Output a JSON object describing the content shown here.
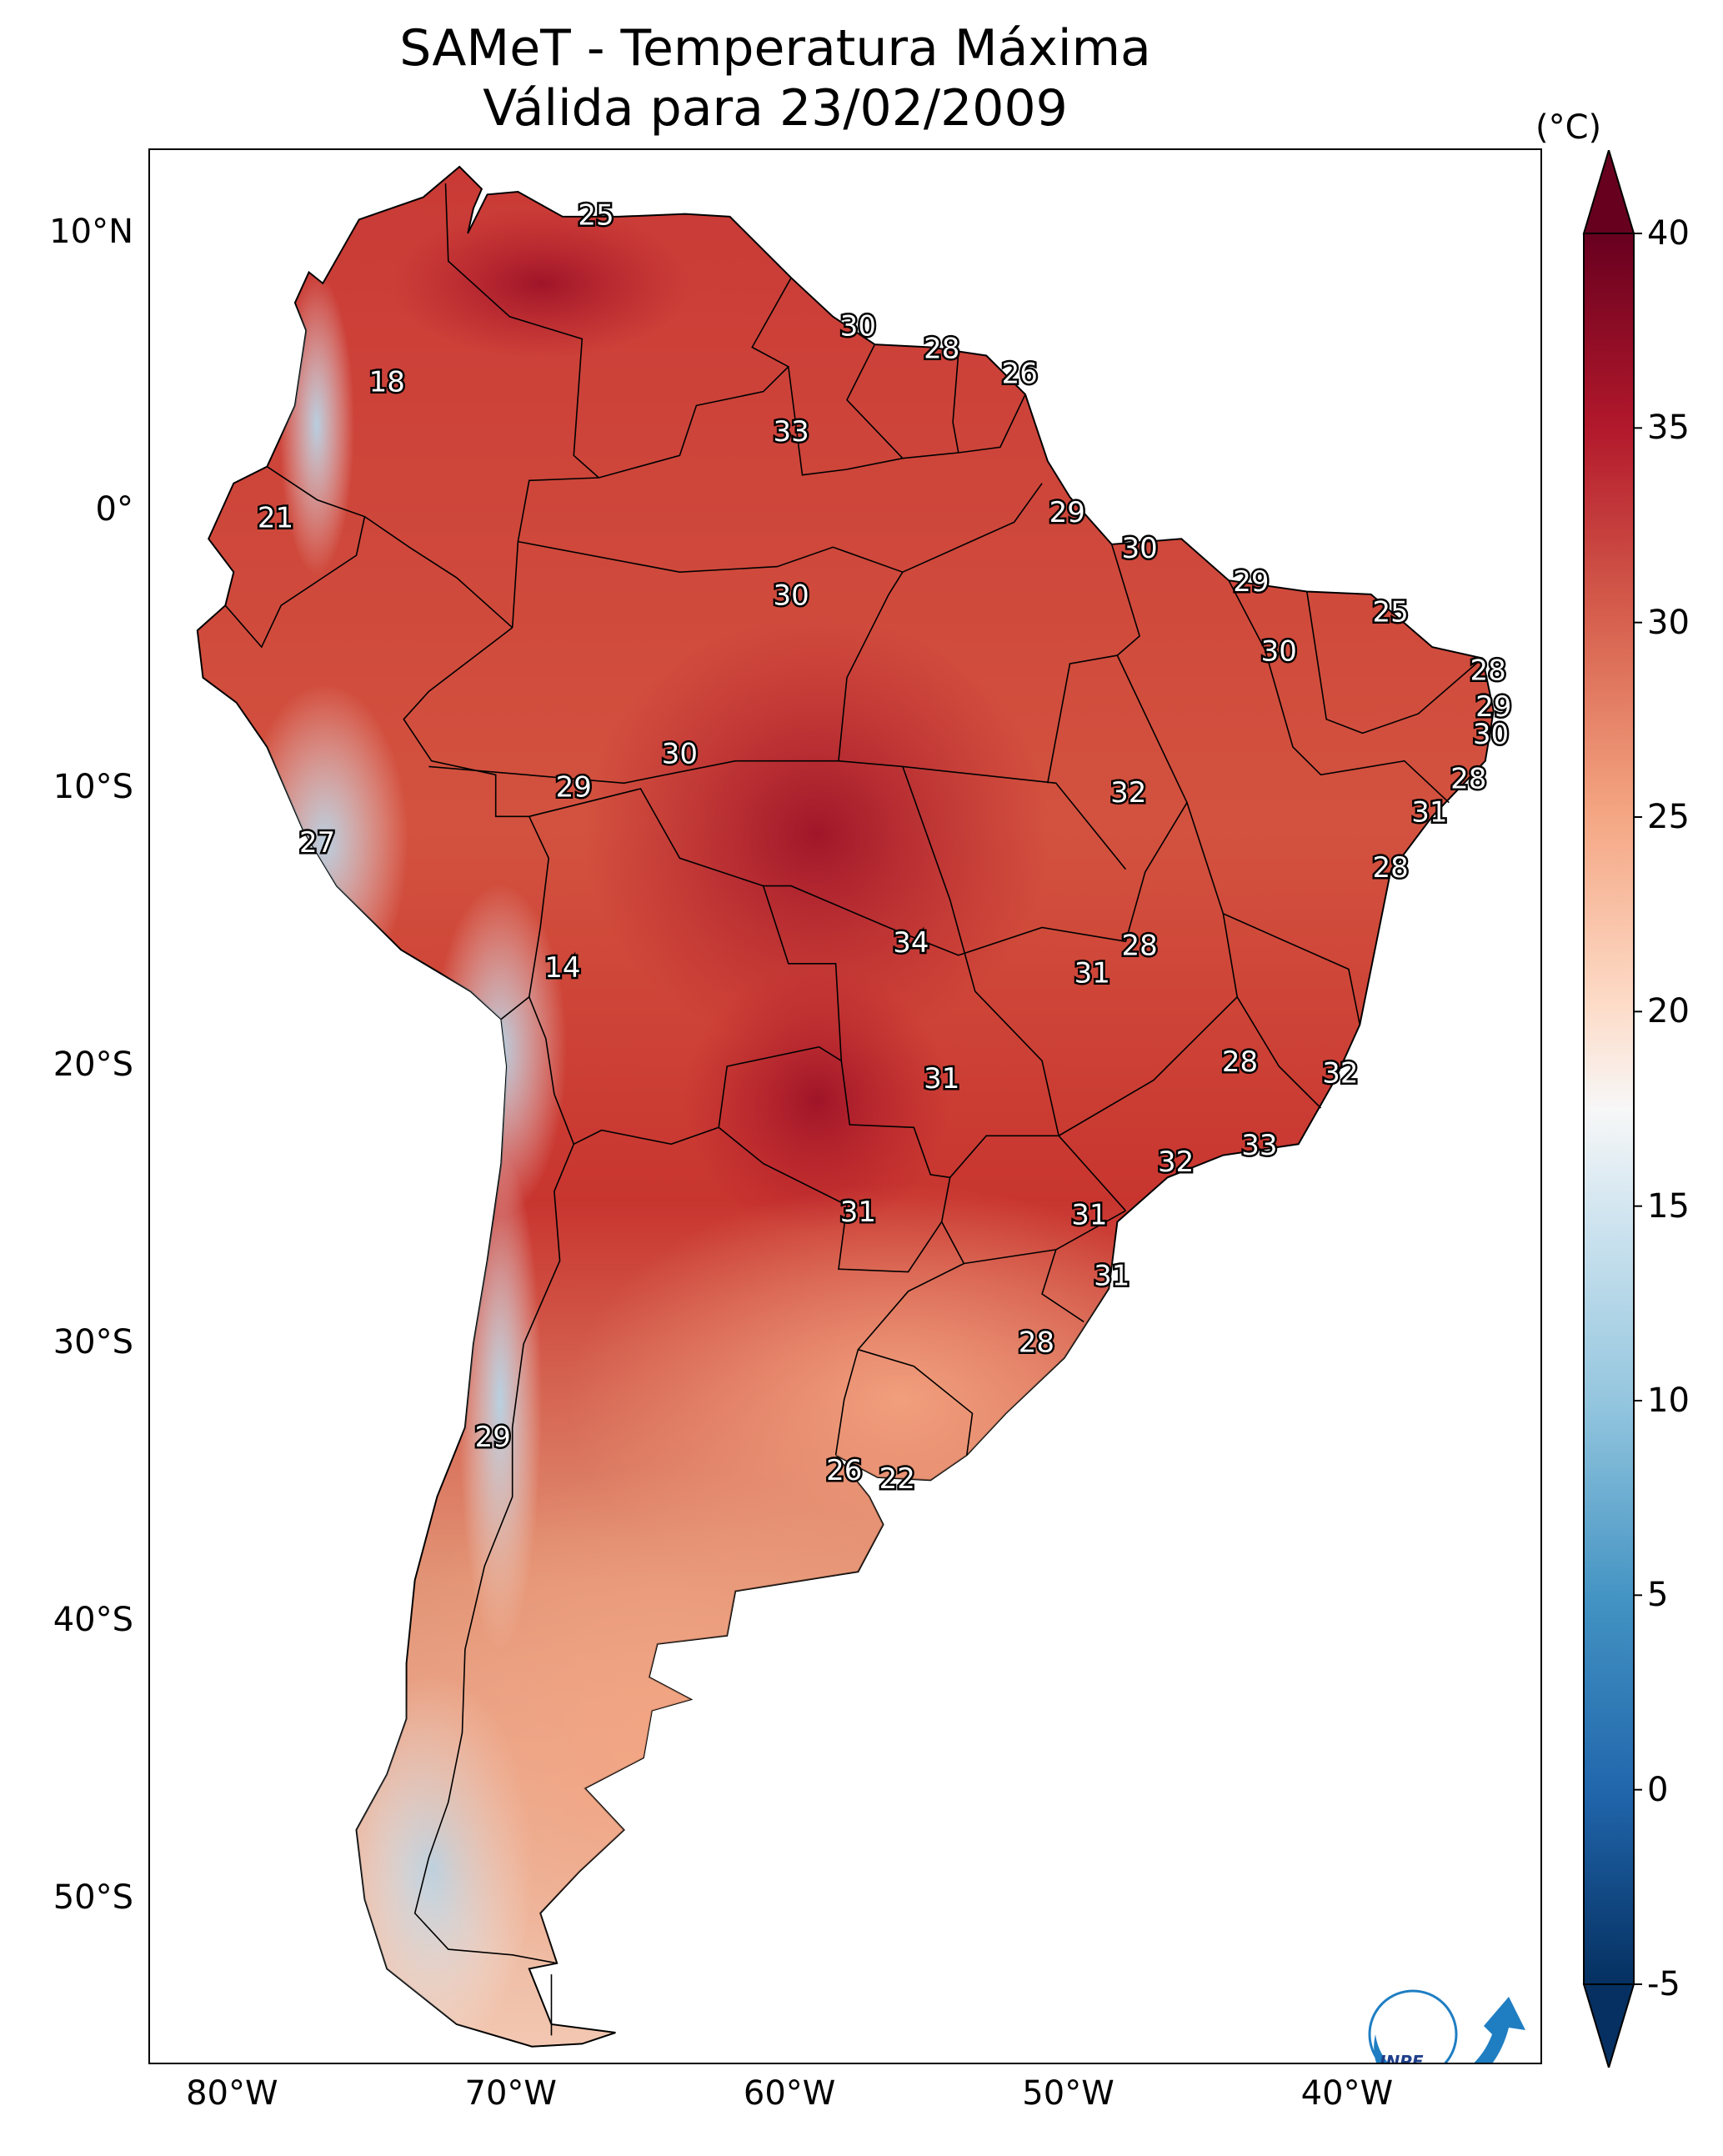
{
  "title": {
    "line1": "SAMeT - Temperatura Máxima",
    "line2": "Válida para 23/02/2009"
  },
  "lat_ticks": [
    {
      "label": "10°N",
      "lat": 10
    },
    {
      "label": "0°",
      "lat": 0
    },
    {
      "label": "10°S",
      "lat": -10
    },
    {
      "label": "20°S",
      "lat": -20
    },
    {
      "label": "30°S",
      "lat": -30
    },
    {
      "label": "40°S",
      "lat": -40
    },
    {
      "label": "50°S",
      "lat": -50
    }
  ],
  "lon_ticks": [
    {
      "label": "80°W",
      "lon": -80
    },
    {
      "label": "70°W",
      "lon": -70
    },
    {
      "label": "60°W",
      "lon": -60
    },
    {
      "label": "50°W",
      "lon": -50
    },
    {
      "label": "40°W",
      "lon": -40
    }
  ],
  "colorbar": {
    "unit": "(°C)",
    "min": -5,
    "max": 40,
    "extend": "both",
    "colormap": "RdBu_r",
    "ticks": [
      "40",
      "35",
      "30",
      "25",
      "20",
      "15",
      "10",
      "5",
      "0",
      "-5"
    ]
  },
  "map_extent": {
    "lon_min": -83,
    "lon_max": -33,
    "lat_min": -56,
    "lat_max": 13
  },
  "station_labels": [
    {
      "text": "25",
      "lon": -67.0,
      "lat": 10.6
    },
    {
      "text": "18",
      "lon": -74.5,
      "lat": 4.6
    },
    {
      "text": "30",
      "lon": -57.6,
      "lat": 6.6
    },
    {
      "text": "28",
      "lon": -54.6,
      "lat": 5.8
    },
    {
      "text": "26",
      "lon": -51.8,
      "lat": 4.9
    },
    {
      "text": "33",
      "lon": -60.0,
      "lat": 2.8
    },
    {
      "text": "21",
      "lon": -78.5,
      "lat": -0.3
    },
    {
      "text": "29",
      "lon": -50.1,
      "lat": -0.1
    },
    {
      "text": "30",
      "lon": -47.5,
      "lat": -1.4
    },
    {
      "text": "29",
      "lon": -43.5,
      "lat": -2.6
    },
    {
      "text": "25",
      "lon": -38.5,
      "lat": -3.7
    },
    {
      "text": "30",
      "lon": -60.0,
      "lat": -3.1
    },
    {
      "text": "30",
      "lon": -42.5,
      "lat": -5.1
    },
    {
      "text": "28",
      "lon": -35.0,
      "lat": -5.8
    },
    {
      "text": "29",
      "lon": -34.8,
      "lat": -7.1
    },
    {
      "text": "30",
      "lon": -34.9,
      "lat": -8.1
    },
    {
      "text": "30",
      "lon": -64.0,
      "lat": -8.8
    },
    {
      "text": "29",
      "lon": -67.8,
      "lat": -10.0
    },
    {
      "text": "32",
      "lon": -47.9,
      "lat": -10.2
    },
    {
      "text": "28",
      "lon": -35.7,
      "lat": -9.7
    },
    {
      "text": "31",
      "lon": -37.1,
      "lat": -10.9
    },
    {
      "text": "27",
      "lon": -77.0,
      "lat": -12.0
    },
    {
      "text": "28",
      "lon": -38.5,
      "lat": -12.9
    },
    {
      "text": "34",
      "lon": -55.7,
      "lat": -15.6
    },
    {
      "text": "28",
      "lon": -47.5,
      "lat": -15.7
    },
    {
      "text": "31",
      "lon": -49.2,
      "lat": -16.7
    },
    {
      "text": "14",
      "lon": -68.2,
      "lat": -16.5
    },
    {
      "text": "28",
      "lon": -43.9,
      "lat": -19.9
    },
    {
      "text": "32",
      "lon": -40.3,
      "lat": -20.3
    },
    {
      "text": "31",
      "lon": -54.6,
      "lat": -20.5
    },
    {
      "text": "33",
      "lon": -43.2,
      "lat": -22.9
    },
    {
      "text": "32",
      "lon": -46.2,
      "lat": -23.5
    },
    {
      "text": "31",
      "lon": -57.6,
      "lat": -25.3
    },
    {
      "text": "31",
      "lon": -49.3,
      "lat": -25.4
    },
    {
      "text": "31",
      "lon": -48.5,
      "lat": -27.6
    },
    {
      "text": "28",
      "lon": -51.2,
      "lat": -30.0
    },
    {
      "text": "29",
      "lon": -70.7,
      "lat": -33.4
    },
    {
      "text": "26",
      "lon": -58.1,
      "lat": -34.6
    },
    {
      "text": "22",
      "lon": -56.2,
      "lat": -34.9
    }
  ],
  "logo": {
    "text": "INPE"
  }
}
